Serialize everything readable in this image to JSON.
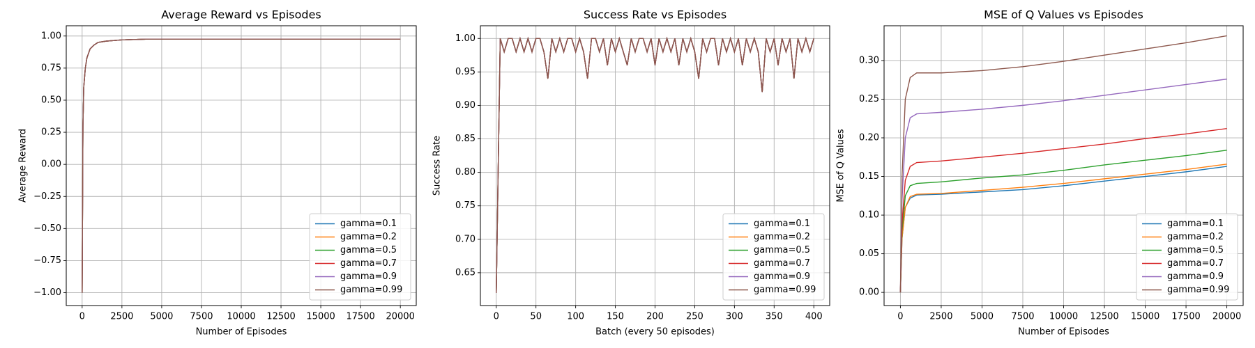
{
  "chart_data": [
    {
      "type": "line",
      "title": "Average Reward vs Episodes",
      "xlabel": "Number of Episodes",
      "ylabel": "Average Reward",
      "x": [
        0,
        50,
        100,
        200,
        300,
        500,
        750,
        1000,
        1500,
        2000,
        2500,
        3000,
        4000,
        5000,
        7500,
        10000,
        15000,
        20000
      ],
      "series": [
        {
          "name": "gamma=0.1",
          "color": "#1f77b4",
          "values": [
            -1,
            0.3,
            0.6,
            0.75,
            0.83,
            0.9,
            0.93,
            0.95,
            0.96,
            0.965,
            0.97,
            0.972,
            0.975,
            0.975,
            0.975,
            0.975,
            0.975,
            0.975
          ]
        },
        {
          "name": "gamma=0.2",
          "color": "#ff7f0e",
          "values": [
            -1,
            0.3,
            0.6,
            0.75,
            0.83,
            0.9,
            0.93,
            0.95,
            0.96,
            0.965,
            0.97,
            0.972,
            0.975,
            0.975,
            0.975,
            0.975,
            0.975,
            0.975
          ]
        },
        {
          "name": "gamma=0.5",
          "color": "#2ca02c",
          "values": [
            -1,
            0.3,
            0.6,
            0.75,
            0.83,
            0.9,
            0.93,
            0.95,
            0.96,
            0.965,
            0.97,
            0.972,
            0.975,
            0.975,
            0.975,
            0.975,
            0.975,
            0.975
          ]
        },
        {
          "name": "gamma=0.7",
          "color": "#d62728",
          "values": [
            -1,
            0.3,
            0.6,
            0.75,
            0.83,
            0.9,
            0.93,
            0.95,
            0.96,
            0.965,
            0.97,
            0.972,
            0.975,
            0.975,
            0.975,
            0.975,
            0.975,
            0.975
          ]
        },
        {
          "name": "gamma=0.9",
          "color": "#9467bd",
          "values": [
            -1,
            0.3,
            0.6,
            0.75,
            0.83,
            0.9,
            0.93,
            0.95,
            0.96,
            0.965,
            0.97,
            0.972,
            0.975,
            0.975,
            0.975,
            0.975,
            0.975,
            0.975
          ]
        },
        {
          "name": "gamma=0.99",
          "color": "#8c564b",
          "values": [
            -1,
            0.3,
            0.6,
            0.75,
            0.83,
            0.9,
            0.93,
            0.95,
            0.96,
            0.965,
            0.97,
            0.972,
            0.975,
            0.975,
            0.975,
            0.975,
            0.975,
            0.975
          ]
        }
      ],
      "xlim": [
        -1000,
        21000
      ],
      "xticks": [
        0,
        2500,
        5000,
        7500,
        10000,
        12500,
        15000,
        17500,
        20000
      ],
      "ylim": [
        -1.1,
        1.08
      ],
      "yticks": [
        {
          "value": -1,
          "label": "−1.00"
        },
        {
          "value": -0.75,
          "label": "−0.75"
        },
        {
          "value": -0.5,
          "label": "−0.50"
        },
        {
          "value": -0.25,
          "label": "−0.25"
        },
        {
          "value": 0,
          "label": "0.00"
        },
        {
          "value": 0.25,
          "label": "0.25"
        },
        {
          "value": 0.5,
          "label": "0.50"
        },
        {
          "value": 0.75,
          "label": "0.75"
        },
        {
          "value": 1,
          "label": "1.00"
        }
      ],
      "grid": true,
      "legend": "lower right"
    },
    {
      "type": "line",
      "title": "Success Rate vs Episodes",
      "xlabel": "Batch (every 50 episodes)",
      "ylabel": "Success Rate",
      "x": [
        0,
        5,
        10,
        15,
        20,
        25,
        30,
        35,
        40,
        45,
        50,
        55,
        60,
        65,
        70,
        75,
        80,
        85,
        90,
        95,
        100,
        105,
        110,
        115,
        120,
        125,
        130,
        135,
        140,
        145,
        150,
        155,
        160,
        165,
        170,
        175,
        180,
        185,
        190,
        195,
        200,
        205,
        210,
        215,
        220,
        225,
        230,
        235,
        240,
        245,
        250,
        255,
        260,
        265,
        270,
        275,
        280,
        285,
        290,
        295,
        300,
        305,
        310,
        315,
        320,
        325,
        330,
        335,
        340,
        345,
        350,
        355,
        360,
        365,
        370,
        375,
        380,
        385,
        390,
        395,
        400
      ],
      "series": [
        {
          "name": "gamma=0.1",
          "color": "#1f77b4",
          "values": [
            0.62,
            1,
            0.98,
            1,
            1,
            0.98,
            1,
            0.98,
            1,
            0.98,
            1,
            1,
            0.98,
            0.94,
            1,
            0.98,
            1,
            0.98,
            1,
            1,
            0.98,
            1,
            0.98,
            0.94,
            1,
            1,
            0.98,
            1,
            0.96,
            1,
            0.98,
            1,
            0.98,
            0.96,
            1,
            0.98,
            1,
            1,
            0.98,
            1,
            0.96,
            1,
            0.98,
            1,
            0.98,
            1,
            0.96,
            1,
            0.98,
            1,
            0.98,
            0.94,
            1,
            0.98,
            1,
            1,
            0.96,
            1,
            0.98,
            1,
            0.98,
            1,
            0.96,
            1,
            0.98,
            1,
            0.98,
            0.92,
            1,
            0.98,
            1,
            0.96,
            1,
            0.98,
            1,
            0.94,
            1,
            0.98,
            1,
            0.98,
            1
          ]
        },
        {
          "name": "gamma=0.2",
          "color": "#ff7f0e",
          "values": [
            0.62,
            1,
            0.98,
            1,
            1,
            0.98,
            1,
            0.98,
            1,
            0.98,
            1,
            1,
            0.98,
            0.94,
            1,
            0.98,
            1,
            0.98,
            1,
            1,
            0.98,
            1,
            0.98,
            0.94,
            1,
            1,
            0.98,
            1,
            0.96,
            1,
            0.98,
            1,
            0.98,
            0.96,
            1,
            0.98,
            1,
            1,
            0.98,
            1,
            0.96,
            1,
            0.98,
            1,
            0.98,
            1,
            0.96,
            1,
            0.98,
            1,
            0.98,
            0.94,
            1,
            0.98,
            1,
            1,
            0.96,
            1,
            0.98,
            1,
            0.98,
            1,
            0.96,
            1,
            0.98,
            1,
            0.98,
            0.92,
            1,
            0.98,
            1,
            0.96,
            1,
            0.98,
            1,
            0.94,
            1,
            0.98,
            1,
            0.98,
            1
          ]
        },
        {
          "name": "gamma=0.5",
          "color": "#2ca02c",
          "values": [
            0.62,
            1,
            0.98,
            1,
            1,
            0.98,
            1,
            0.98,
            1,
            0.98,
            1,
            1,
            0.98,
            0.94,
            1,
            0.98,
            1,
            0.98,
            1,
            1,
            0.98,
            1,
            0.98,
            0.94,
            1,
            1,
            0.98,
            1,
            0.96,
            1,
            0.98,
            1,
            0.98,
            0.96,
            1,
            0.98,
            1,
            1,
            0.98,
            1,
            0.96,
            1,
            0.98,
            1,
            0.98,
            1,
            0.96,
            1,
            0.98,
            1,
            0.98,
            0.94,
            1,
            0.98,
            1,
            1,
            0.96,
            1,
            0.98,
            1,
            0.98,
            1,
            0.96,
            1,
            0.98,
            1,
            0.98,
            0.92,
            1,
            0.98,
            1,
            0.96,
            1,
            0.98,
            1,
            0.94,
            1,
            0.98,
            1,
            0.98,
            1
          ]
        },
        {
          "name": "gamma=0.7",
          "color": "#d62728",
          "values": [
            0.62,
            1,
            0.98,
            1,
            1,
            0.98,
            1,
            0.98,
            1,
            0.98,
            1,
            1,
            0.98,
            0.94,
            1,
            0.98,
            1,
            0.98,
            1,
            1,
            0.98,
            1,
            0.98,
            0.94,
            1,
            1,
            0.98,
            1,
            0.96,
            1,
            0.98,
            1,
            0.98,
            0.96,
            1,
            0.98,
            1,
            1,
            0.98,
            1,
            0.96,
            1,
            0.98,
            1,
            0.98,
            1,
            0.96,
            1,
            0.98,
            1,
            0.98,
            0.94,
            1,
            0.98,
            1,
            1,
            0.96,
            1,
            0.98,
            1,
            0.98,
            1,
            0.96,
            1,
            0.98,
            1,
            0.98,
            0.92,
            1,
            0.98,
            1,
            0.96,
            1,
            0.98,
            1,
            0.94,
            1,
            0.98,
            1,
            0.98,
            1
          ]
        },
        {
          "name": "gamma=0.9",
          "color": "#9467bd",
          "values": [
            0.62,
            1,
            0.98,
            1,
            1,
            0.98,
            1,
            0.98,
            1,
            0.98,
            1,
            1,
            0.98,
            0.94,
            1,
            0.98,
            1,
            0.98,
            1,
            1,
            0.98,
            1,
            0.98,
            0.94,
            1,
            1,
            0.98,
            1,
            0.96,
            1,
            0.98,
            1,
            0.98,
            0.96,
            1,
            0.98,
            1,
            1,
            0.98,
            1,
            0.96,
            1,
            0.98,
            1,
            0.98,
            1,
            0.96,
            1,
            0.98,
            1,
            0.98,
            0.94,
            1,
            0.98,
            1,
            1,
            0.96,
            1,
            0.98,
            1,
            0.98,
            1,
            0.96,
            1,
            0.98,
            1,
            0.98,
            0.92,
            1,
            0.98,
            1,
            0.96,
            1,
            0.98,
            1,
            0.94,
            1,
            0.98,
            1,
            0.98,
            1
          ]
        },
        {
          "name": "gamma=0.99",
          "color": "#8c564b",
          "values": [
            0.62,
            1,
            0.98,
            1,
            1,
            0.98,
            1,
            0.98,
            1,
            0.98,
            1,
            1,
            0.98,
            0.94,
            1,
            0.98,
            1,
            0.98,
            1,
            1,
            0.98,
            1,
            0.98,
            0.94,
            1,
            1,
            0.98,
            1,
            0.96,
            1,
            0.98,
            1,
            0.98,
            0.96,
            1,
            0.98,
            1,
            1,
            0.98,
            1,
            0.96,
            1,
            0.98,
            1,
            0.98,
            1,
            0.96,
            1,
            0.98,
            1,
            0.98,
            0.94,
            1,
            0.98,
            1,
            1,
            0.96,
            1,
            0.98,
            1,
            0.98,
            1,
            0.96,
            1,
            0.98,
            1,
            0.98,
            0.92,
            1,
            0.98,
            1,
            0.96,
            1,
            0.98,
            1,
            0.94,
            1,
            0.98,
            1,
            0.98,
            1
          ]
        }
      ],
      "xlim": [
        -20,
        420
      ],
      "xticks": [
        0,
        50,
        100,
        150,
        200,
        250,
        300,
        350,
        400
      ],
      "ylim": [
        0.601,
        1.019
      ],
      "yticks": [
        0.65,
        {
          "value": 0.7,
          "label": "0.70"
        },
        0.75,
        {
          "value": 0.8,
          "label": "0.80"
        },
        0.85,
        {
          "value": 0.9,
          "label": "0.90"
        },
        0.95,
        {
          "value": 1,
          "label": "1.00"
        }
      ],
      "grid": true,
      "legend": "lower right"
    },
    {
      "type": "line",
      "title": "MSE of Q Values vs Episodes",
      "xlabel": "Number of Episodes",
      "ylabel": "MSE of Q Values",
      "x": [
        0,
        100,
        300,
        600,
        1000,
        2500,
        5000,
        7500,
        10000,
        12500,
        15000,
        17500,
        20000
      ],
      "series": [
        {
          "name": "gamma=0.1",
          "color": "#1f77b4",
          "values": [
            0,
            0.07,
            0.11,
            0.122,
            0.126,
            0.127,
            0.13,
            0.133,
            0.138,
            0.144,
            0.15,
            0.156,
            0.163
          ]
        },
        {
          "name": "gamma=0.2",
          "color": "#ff7f0e",
          "values": [
            0,
            0.07,
            0.11,
            0.124,
            0.127,
            0.128,
            0.132,
            0.136,
            0.141,
            0.147,
            0.153,
            0.159,
            0.166
          ]
        },
        {
          "name": "gamma=0.5",
          "color": "#2ca02c",
          "values": [
            0,
            0.08,
            0.125,
            0.138,
            0.141,
            0.143,
            0.148,
            0.152,
            0.158,
            0.165,
            0.171,
            0.177,
            0.184
          ]
        },
        {
          "name": "gamma=0.7",
          "color": "#d62728",
          "values": [
            0,
            0.09,
            0.145,
            0.163,
            0.168,
            0.17,
            0.175,
            0.18,
            0.186,
            0.192,
            0.199,
            0.205,
            0.212
          ]
        },
        {
          "name": "gamma=0.9",
          "color": "#9467bd",
          "values": [
            0,
            0.12,
            0.2,
            0.226,
            0.231,
            0.233,
            0.237,
            0.242,
            0.248,
            0.255,
            0.262,
            0.269,
            0.276
          ]
        },
        {
          "name": "gamma=0.99",
          "color": "#8c564b",
          "values": [
            0,
            0.15,
            0.25,
            0.278,
            0.284,
            0.284,
            0.287,
            0.292,
            0.299,
            0.307,
            0.315,
            0.323,
            0.332
          ]
        }
      ],
      "xlim": [
        -1000,
        21000
      ],
      "xticks": [
        0,
        2500,
        5000,
        7500,
        10000,
        12500,
        15000,
        17500,
        20000
      ],
      "ylim": [
        -0.017,
        0.345
      ],
      "yticks": [
        {
          "value": 0,
          "label": "0.00"
        },
        0.05,
        {
          "value": 0.1,
          "label": "0.10"
        },
        0.15,
        {
          "value": 0.2,
          "label": "0.20"
        },
        0.25,
        {
          "value": 0.3,
          "label": "0.30"
        }
      ],
      "grid": true,
      "legend": "lower right"
    }
  ]
}
